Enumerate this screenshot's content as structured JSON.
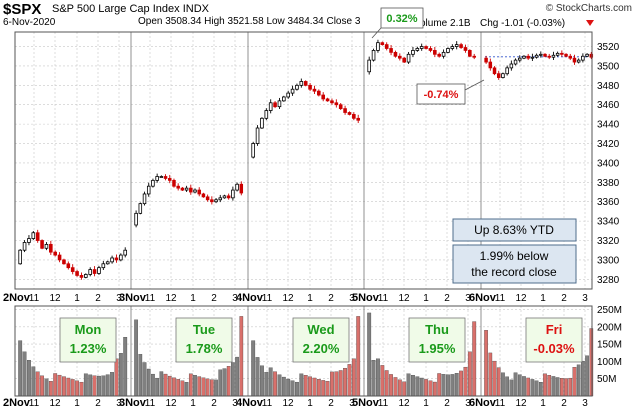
{
  "header": {
    "symbol": "$SPX",
    "description": "S&P 500 Large Cap Index",
    "exchange": "INDX",
    "date": "6-Nov-2020",
    "credit": "© StockCharts.com",
    "ohlc_line": "Open 3508.34  High 3521.58  Low 3484.34  Close 3",
    "volume_text": "olume 2.1B",
    "change_text": "Chg -1.01 (-0.03%)"
  },
  "colors": {
    "up": "#000000",
    "down": "#cc0000",
    "volume_up": "#808080",
    "volume_down": "#d9706b",
    "grid": "#c8c8c8",
    "annotation_bg": "#dce6f1",
    "annotation_border": "#4f6d8c",
    "green": "#1a9a1a",
    "red": "#dd1111",
    "day_box_bg": "#f0fbe8"
  },
  "chart_data": {
    "type": "candlestick",
    "price_axis": {
      "ylim": [
        3270,
        3535
      ],
      "ticks": [
        3280,
        3300,
        3320,
        3340,
        3360,
        3380,
        3400,
        3420,
        3440,
        3460,
        3480,
        3500,
        3520
      ]
    },
    "volume_axis": {
      "ylim": [
        0,
        260
      ],
      "unit": "M",
      "ticks": [
        50,
        100,
        150,
        200,
        250
      ],
      "tick_labels": [
        "50M",
        "100M",
        "150M",
        "200M",
        "250M"
      ]
    },
    "x_axis": {
      "day_labels": [
        "2Nov",
        "3Nov",
        "4Nov",
        "5Nov",
        "6Nov"
      ],
      "hour_labels": [
        "11",
        "12",
        "1",
        "2",
        "3"
      ]
    },
    "days": [
      {
        "label": "2Nov",
        "weekday": "Mon",
        "change": "1.23%",
        "positive": true,
        "price_path": [
          3296,
          3310,
          3318,
          3322,
          3328,
          3320,
          3312,
          3316,
          3308,
          3305,
          3300,
          3296,
          3292,
          3288,
          3284,
          3282,
          3285,
          3290,
          3286,
          3292,
          3296,
          3298,
          3302,
          3300,
          3305,
          3310
        ]
      },
      {
        "label": "3Nov",
        "weekday": "Tue",
        "change": "1.78%",
        "positive": true,
        "price_path": [
          3336,
          3348,
          3358,
          3368,
          3376,
          3382,
          3386,
          3386,
          3384,
          3382,
          3376,
          3374,
          3372,
          3374,
          3370,
          3372,
          3368,
          3365,
          3362,
          3360,
          3362,
          3364,
          3366,
          3364,
          3372,
          3378,
          3369
        ]
      },
      {
        "label": "4Nov",
        "weekday": "Wed",
        "change": "2.20%",
        "positive": true,
        "price_path": [
          3406,
          3420,
          3436,
          3446,
          3454,
          3462,
          3458,
          3464,
          3468,
          3472,
          3476,
          3480,
          3484,
          3480,
          3476,
          3474,
          3470,
          3466,
          3464,
          3462,
          3460,
          3456,
          3452,
          3450,
          3446,
          3444
        ]
      },
      {
        "label": "5Nov",
        "weekday": "Thu",
        "change": "1.95%",
        "positive": true,
        "price_path": [
          3494,
          3506,
          3516,
          3524,
          3522,
          3518,
          3514,
          3510,
          3508,
          3504,
          3512,
          3516,
          3518,
          3520,
          3518,
          3516,
          3512,
          3510,
          3514,
          3518,
          3520,
          3522,
          3519,
          3516,
          3510,
          3509
        ]
      },
      {
        "label": "6Nov",
        "weekday": "Fri",
        "change": "-0.03%",
        "positive": false,
        "price_path": [
          3508,
          3504,
          3498,
          3492,
          3488,
          3492,
          3498,
          3502,
          3506,
          3508,
          3510,
          3508,
          3509,
          3511,
          3512,
          3510,
          3509,
          3511,
          3513,
          3512,
          3510,
          3508,
          3504,
          3506,
          3510,
          3512,
          3509
        ]
      }
    ],
    "prev_close_reference": 3509.44,
    "annotations": [
      {
        "text": "0.32%",
        "color": "green"
      },
      {
        "text": "-0.74%",
        "color": "red"
      }
    ],
    "notes": [
      {
        "lines": [
          "Up 8.63% YTD"
        ]
      },
      {
        "lines": [
          "1.99% below",
          "the record close"
        ]
      }
    ]
  }
}
